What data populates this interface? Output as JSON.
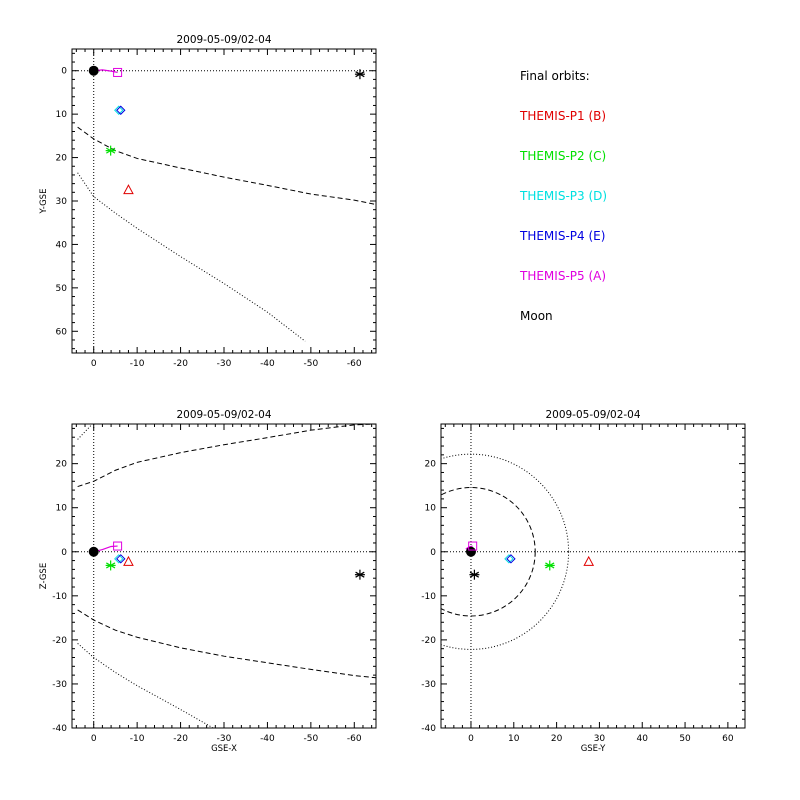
{
  "colors": {
    "P1": "#e00000",
    "P2": "#00e000",
    "P3": "#00e0e0",
    "P4": "#0000e0",
    "P5": "#e000e0",
    "Moon": "#000000",
    "Earth": "#000000",
    "orbit_line": "#e000e0"
  },
  "legend": {
    "title": "Final orbits:",
    "items": [
      {
        "label": "THEMIS-P1 (B)",
        "color": "#e00000"
      },
      {
        "label": "THEMIS-P2 (C)",
        "color": "#00e000"
      },
      {
        "label": "THEMIS-P3 (D)",
        "color": "#00e0e0"
      },
      {
        "label": "THEMIS-P4 (E)",
        "color": "#0000e0"
      },
      {
        "label": "THEMIS-P5 (A)",
        "color": "#e000e0"
      },
      {
        "label": "Moon",
        "color": "#000000"
      }
    ]
  },
  "chart_data": [
    {
      "type": "scatter",
      "title": "2009-05-09/02-04",
      "xlabel": "",
      "ylabel": "Y-GSE",
      "xlim": [
        5,
        -65
      ],
      "ylim": [
        65,
        -5
      ],
      "xticks": [
        0,
        -10,
        -20,
        -30,
        -40,
        -50,
        -60
      ],
      "yticks": [
        0,
        10,
        20,
        30,
        40,
        50,
        60
      ],
      "reference_lines": {
        "h": 0,
        "v": 0
      },
      "boundaries": {
        "dashed": [
          [
            3.7,
            13
          ],
          [
            0,
            15.7
          ],
          [
            -5,
            18.4
          ],
          [
            -10,
            20.2
          ],
          [
            -20,
            22.4
          ],
          [
            -30,
            24.5
          ],
          [
            -40,
            26.4
          ],
          [
            -50,
            28.4
          ],
          [
            -60,
            29.8
          ],
          [
            -65,
            30.8
          ]
        ],
        "dotted": [
          [
            3.7,
            23.5
          ],
          [
            0,
            29
          ],
          [
            -5,
            32.8
          ],
          [
            -10,
            36.3
          ],
          [
            -20,
            42.8
          ],
          [
            -30,
            49
          ],
          [
            -40,
            55.6
          ],
          [
            -48.7,
            62.3
          ]
        ]
      },
      "orbit_track": [
        [
          0,
          0
        ],
        [
          -2,
          -0.2
        ],
        [
          -4,
          0.1
        ],
        [
          -5.5,
          0.4
        ]
      ],
      "earth": [
        0,
        0
      ],
      "points": [
        {
          "name": "THEMIS-P1 (B)",
          "marker": "triangle",
          "x": -8,
          "y": 27.5
        },
        {
          "name": "THEMIS-P2 (C)",
          "marker": "asterisk",
          "x": -3.9,
          "y": 18.4
        },
        {
          "name": "THEMIS-P3 (D)",
          "marker": "diamond-cyan",
          "x": -6,
          "y": 9.1
        },
        {
          "name": "THEMIS-P4 (E)",
          "marker": "diamond",
          "x": -6,
          "y": 9.1
        },
        {
          "name": "THEMIS-P5 (A)",
          "marker": "square",
          "x": -5.5,
          "y": 0.4
        },
        {
          "name": "Moon",
          "marker": "asterisk",
          "x": -61.3,
          "y": 0.8
        }
      ]
    },
    {
      "type": "scatter",
      "title": "2009-05-09/02-04",
      "xlabel": "GSE-X",
      "ylabel": "Z-GSE",
      "xlim": [
        5,
        -65
      ],
      "ylim": [
        -40,
        29
      ],
      "xticks": [
        0,
        -10,
        -20,
        -30,
        -40,
        -50,
        -60
      ],
      "yticks": [
        -40,
        -30,
        -20,
        -10,
        0,
        10,
        20
      ],
      "reference_lines": {
        "h": 0,
        "v": 0
      },
      "boundaries": {
        "dashed": [
          [
            3.7,
            14.8
          ],
          [
            0,
            16
          ],
          [
            -5,
            18.5
          ],
          [
            -10,
            20.3
          ],
          [
            -20,
            22.5
          ],
          [
            -30,
            24.3
          ],
          [
            -40,
            25.9
          ],
          [
            -50,
            27.6
          ],
          [
            -60,
            28.8
          ],
          [
            -65,
            29
          ],
          null,
          [
            3.7,
            -13.2
          ],
          [
            0,
            -15.5
          ],
          [
            -5,
            -17.8
          ],
          [
            -10,
            -19.4
          ],
          [
            -20,
            -21.8
          ],
          [
            -30,
            -23.7
          ],
          [
            -40,
            -25.2
          ],
          [
            -50,
            -26.7
          ],
          [
            -60,
            -28.1
          ],
          [
            -65,
            -28.6
          ]
        ],
        "dotted": [
          [
            3.7,
            25.5
          ],
          [
            0.5,
            28.8
          ],
          null,
          [
            3.7,
            -20.8
          ],
          [
            0,
            -24
          ],
          [
            -5,
            -27.4
          ],
          [
            -10,
            -30.4
          ],
          [
            -20,
            -35.8
          ],
          [
            -27.5,
            -40
          ]
        ]
      },
      "orbit_track": [
        [
          0,
          0
        ],
        [
          -2,
          0.5
        ],
        [
          -4,
          1.2
        ],
        [
          -5.5,
          1.3
        ]
      ],
      "earth": [
        0,
        0
      ],
      "points": [
        {
          "name": "THEMIS-P1 (B)",
          "marker": "triangle",
          "x": -8,
          "y": -2.3
        },
        {
          "name": "THEMIS-P2 (C)",
          "marker": "asterisk",
          "x": -3.9,
          "y": -3.1
        },
        {
          "name": "THEMIS-P3 (D)",
          "marker": "diamond-cyan",
          "x": -6,
          "y": -1.6
        },
        {
          "name": "THEMIS-P4 (E)",
          "marker": "diamond",
          "x": -6,
          "y": -1.6
        },
        {
          "name": "THEMIS-P5 (A)",
          "marker": "square",
          "x": -5.5,
          "y": 1.3
        },
        {
          "name": "Moon",
          "marker": "asterisk",
          "x": -61.3,
          "y": -5.2
        }
      ]
    },
    {
      "type": "scatter",
      "title": "2009-05-09/02-04",
      "xlabel": "GSE-Y",
      "ylabel": "",
      "xlim": [
        -7,
        64
      ],
      "ylim": [
        -40,
        29
      ],
      "xticks": [
        0,
        10,
        20,
        30,
        40,
        50,
        60
      ],
      "yticks": [
        -40,
        -30,
        -20,
        -10,
        0,
        10,
        20
      ],
      "reference_lines": {
        "h": 0,
        "v": 0
      },
      "circles": {
        "dashed": 15,
        "dotted": 22.8
      },
      "orbit_track": [
        [
          -1.2,
          0.6
        ],
        [
          -0.5,
          1.1
        ],
        [
          0.4,
          1.3
        ]
      ],
      "earth": [
        0,
        0
      ],
      "points": [
        {
          "name": "THEMIS-P1 (B)",
          "marker": "triangle",
          "x": 27.5,
          "y": -2.3
        },
        {
          "name": "THEMIS-P2 (C)",
          "marker": "asterisk",
          "x": 18.4,
          "y": -3.1
        },
        {
          "name": "THEMIS-P3 (D)",
          "marker": "diamond-cyan",
          "x": 9.1,
          "y": -1.6
        },
        {
          "name": "THEMIS-P4 (E)",
          "marker": "diamond",
          "x": 9.1,
          "y": -1.6
        },
        {
          "name": "THEMIS-P5 (A)",
          "marker": "square",
          "x": 0.4,
          "y": 1.3
        },
        {
          "name": "Moon",
          "marker": "asterisk",
          "x": 0.8,
          "y": -5.2
        }
      ]
    }
  ]
}
